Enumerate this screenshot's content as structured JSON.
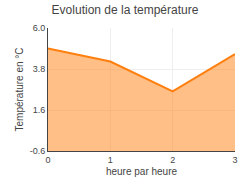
{
  "chart_data": {
    "type": "area",
    "title": "Evolution de la température",
    "xlabel": "heure par heure",
    "ylabel": "Température en °C",
    "x": [
      0,
      1,
      2,
      3
    ],
    "values": [
      4.9,
      4.2,
      2.6,
      4.6
    ],
    "xlim": [
      0,
      3
    ],
    "ylim": [
      -0.6,
      6.0
    ],
    "xticks": [
      0,
      1,
      2,
      3
    ],
    "yticks": [
      -0.6,
      1.6,
      3.8,
      {
        "value": 6.0,
        "label": "6.0"
      }
    ],
    "grid": true
  }
}
